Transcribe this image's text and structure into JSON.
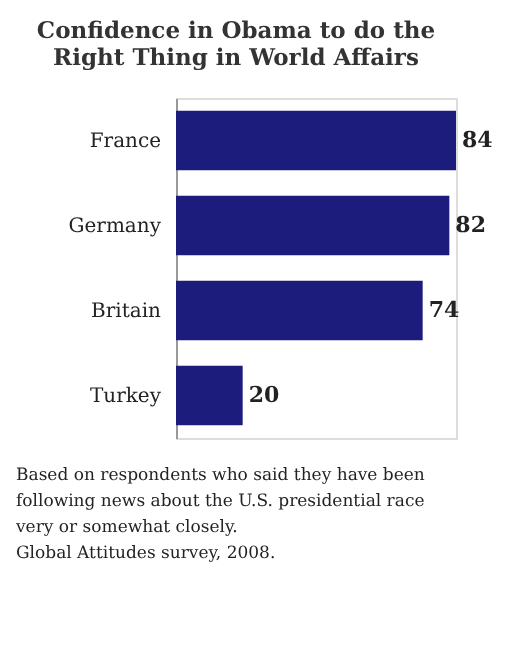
{
  "chart_data": {
    "type": "bar",
    "orientation": "horizontal",
    "title": [
      "Confidence in Obama to do the",
      "Right Thing in World Affairs"
    ],
    "categories": [
      "France",
      "Germany",
      "Britain",
      "Turkey"
    ],
    "values": [
      84,
      82,
      74,
      20
    ],
    "color": "#1c1c7c",
    "data_labels": true,
    "annotations": [
      "Based on respondents who said they have been following news about the U.S. presidential race very or somewhat closely.",
      "Global Attitudes survey, 2008."
    ]
  }
}
